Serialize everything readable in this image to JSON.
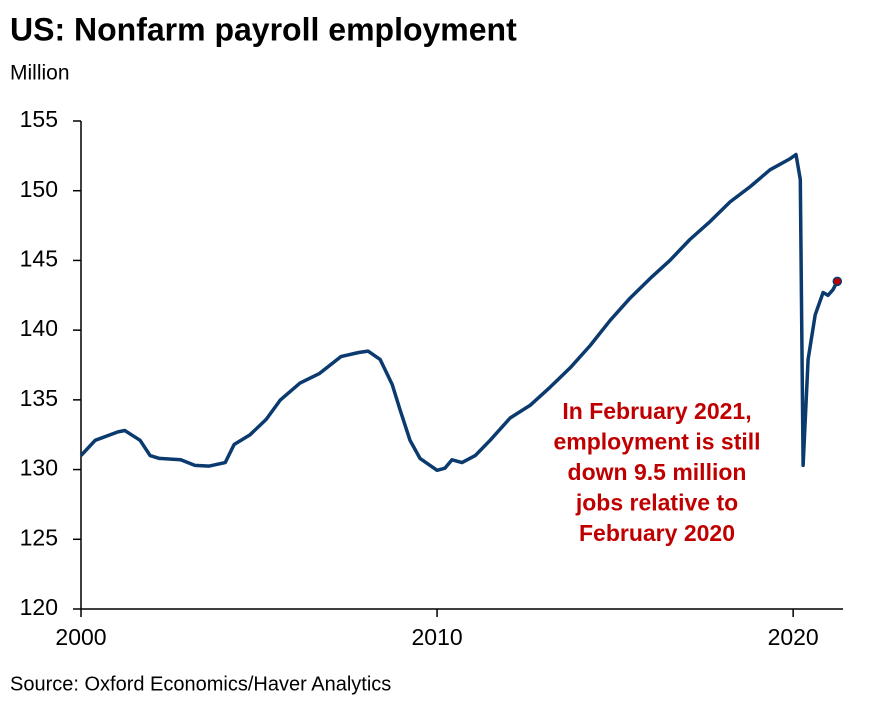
{
  "chart_data": {
    "type": "line",
    "title": "US: Nonfarm payroll employment",
    "subtitle": "Million",
    "source": "Source: Oxford Economics/Haver Analytics",
    "annotation": [
      "In February 2021,",
      "employment is still",
      "down 9.5 million",
      "jobs relative to",
      "February 2020"
    ],
    "annotation_color": "#c00000",
    "x": [
      2000,
      2000.4,
      2001.04,
      2001.23,
      2001.66,
      2001.94,
      2002.2,
      2002.8,
      2003.2,
      2003.6,
      2004.05,
      2004.3,
      2004.75,
      2005.2,
      2005.6,
      2006.15,
      2006.7,
      2007.3,
      2007.8,
      2008.06,
      2008.4,
      2008.74,
      2008.96,
      2009.24,
      2009.52,
      2010.0,
      2010.22,
      2010.42,
      2010.7,
      2011.07,
      2011.49,
      2012.05,
      2012.61,
      2013.17,
      2013.74,
      2014.3,
      2014.86,
      2015.42,
      2015.98,
      2016.54,
      2017.1,
      2017.67,
      2018.23,
      2018.8,
      2019.35,
      2019.92,
      2020.08,
      2020.2,
      2020.28,
      2020.42,
      2020.62,
      2020.84,
      2020.98,
      2021.12,
      2021.24
    ],
    "series": [
      {
        "name": "Nonfarm payroll employment",
        "color": "#0b3a6e",
        "marker_color": "#c00000",
        "values": [
          131.0,
          132.1,
          132.7,
          132.8,
          132.1,
          131.0,
          130.8,
          130.7,
          130.3,
          130.25,
          130.5,
          131.8,
          132.5,
          133.6,
          135.0,
          136.2,
          136.9,
          138.1,
          138.4,
          138.5,
          137.9,
          136.1,
          134.3,
          132.1,
          130.8,
          129.95,
          130.1,
          130.7,
          130.5,
          131.0,
          132.1,
          133.7,
          134.6,
          135.9,
          137.3,
          138.9,
          140.7,
          142.3,
          143.7,
          145.0,
          146.5,
          147.8,
          149.2,
          150.3,
          151.5,
          152.3,
          152.6,
          150.8,
          130.3,
          137.9,
          141.1,
          142.7,
          142.5,
          142.9,
          143.5
        ]
      }
    ],
    "xlim": [
      2000,
      2021.4
    ],
    "xticks": [
      2000,
      2010,
      2020
    ],
    "ylim": [
      120,
      155
    ],
    "yticks": [
      120,
      125,
      130,
      135,
      140,
      145,
      150,
      155
    ],
    "grid": false
  }
}
